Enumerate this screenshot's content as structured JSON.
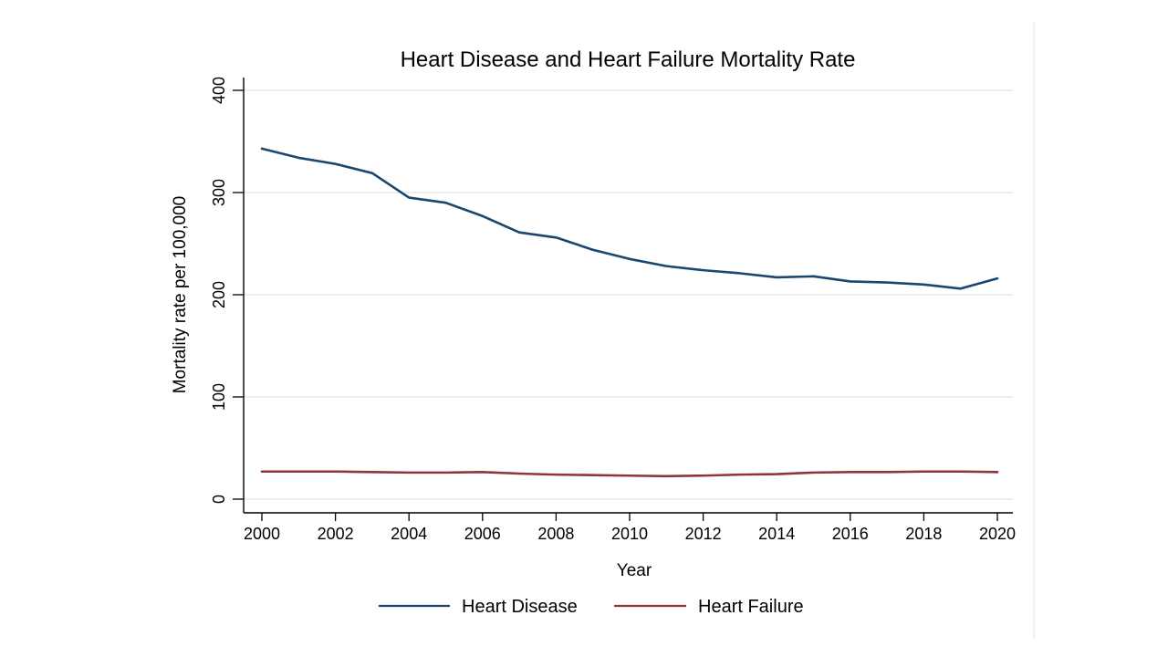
{
  "chart_data": {
    "type": "line",
    "title": "Heart Disease and Heart Failure Mortality Rate",
    "xlabel": "Year",
    "ylabel": "Mortality rate per 100,000",
    "x": [
      2000,
      2001,
      2002,
      2003,
      2004,
      2005,
      2006,
      2007,
      2008,
      2009,
      2010,
      2011,
      2012,
      2013,
      2014,
      2015,
      2016,
      2017,
      2018,
      2019,
      2020
    ],
    "series": [
      {
        "name": "Heart Disease",
        "color": "#1a476f",
        "values": [
          343,
          334,
          328,
          319,
          295,
          290,
          277,
          261,
          256,
          244,
          235,
          228,
          224,
          221,
          217,
          218,
          213,
          212,
          210,
          206,
          216
        ]
      },
      {
        "name": "Heart Failure",
        "color": "#90353b",
        "values": [
          27,
          27,
          27,
          26.5,
          26,
          26,
          26.5,
          25,
          24,
          23.5,
          23,
          22.5,
          23,
          24,
          24.5,
          26,
          26.5,
          26.5,
          27,
          27,
          26.5
        ]
      }
    ],
    "x_ticks": [
      2000,
      2002,
      2004,
      2006,
      2008,
      2010,
      2012,
      2014,
      2016,
      2018,
      2020
    ],
    "x_tick_labels": [
      "2000",
      "2002",
      "2004",
      "2006",
      "2008",
      "2010",
      "2012",
      "2014",
      "2016",
      "2018",
      "2020"
    ],
    "y_ticks": [
      0,
      100,
      200,
      300,
      400
    ],
    "y_tick_labels": [
      "0",
      "100",
      "200",
      "300",
      "400"
    ],
    "xlim": [
      2000,
      2020
    ],
    "ylim": [
      0,
      400
    ],
    "grid": true,
    "legend_position": "bottom-center",
    "colors": {
      "background": "#ffffff",
      "grid": "#e2e9eb",
      "axis": "#000000",
      "region_border": "#dfe5e7"
    }
  }
}
